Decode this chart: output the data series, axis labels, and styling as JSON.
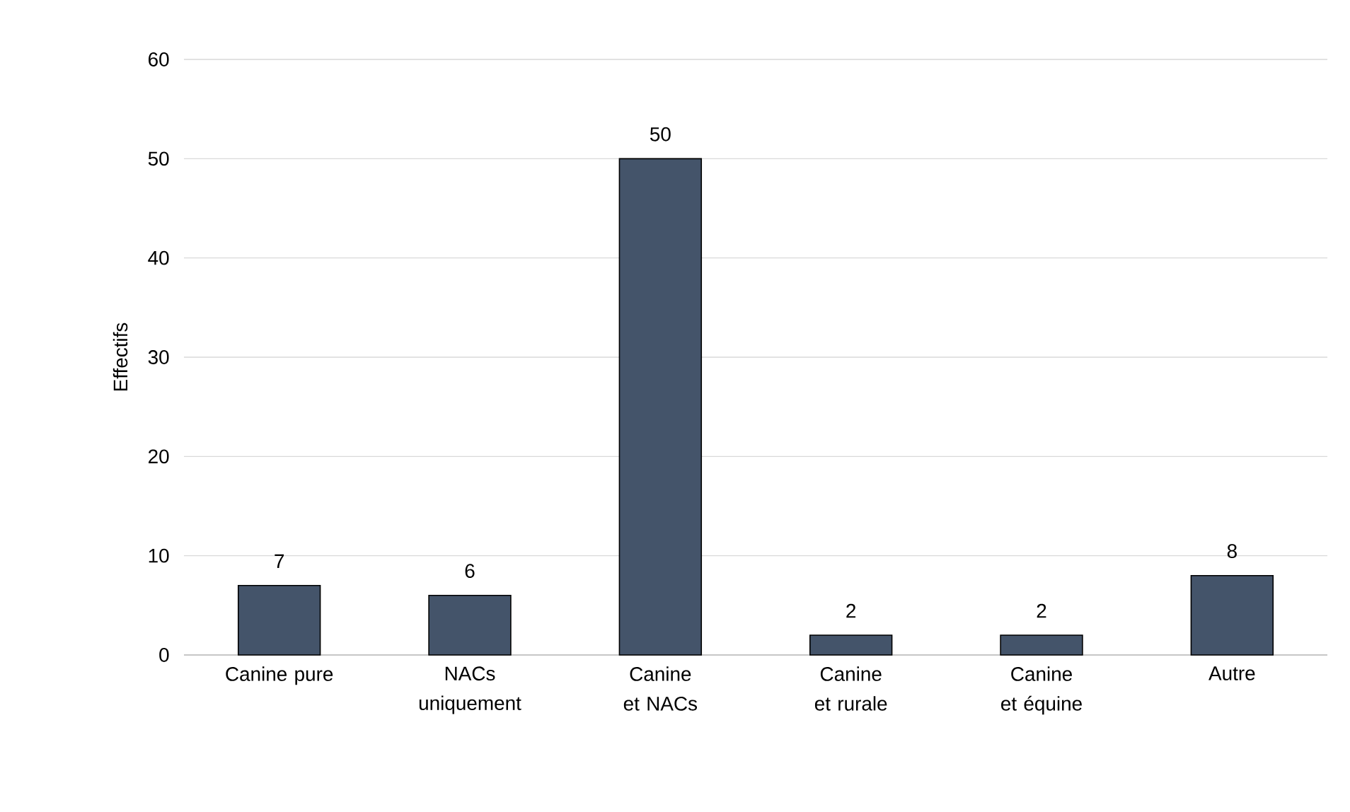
{
  "chart_data": {
    "type": "bar",
    "ylabel": "Effectifs",
    "categories": [
      "Canine pure",
      "NACs uniquement",
      "Canine et NACs",
      "Canine et rurale",
      "Canine et équine",
      "Autre"
    ],
    "values": [
      7,
      6,
      50,
      2,
      2,
      8
    ],
    "color": "#44546a",
    "ylim": [
      0,
      60
    ],
    "yticks": [
      0,
      10,
      20,
      30,
      40,
      50,
      60
    ],
    "grid": "y",
    "data_labels": true
  }
}
